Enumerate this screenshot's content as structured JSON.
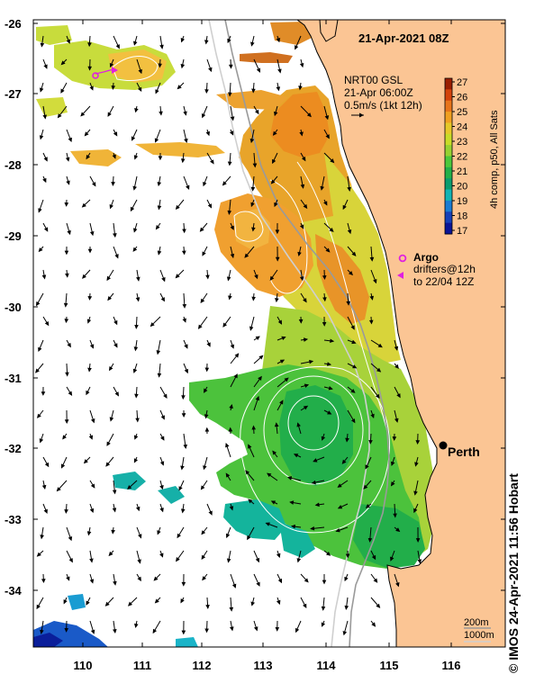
{
  "title": "21-Apr-2021 08Z",
  "product": {
    "line1": "NRT00 GSL",
    "line2": "21-Apr 06:00Z",
    "line3": "0.5m/s (1kt 12h)"
  },
  "colorbar": {
    "label": "4h comp, p50, All Sats",
    "ticks": [
      "27",
      "26",
      "25",
      "24",
      "23",
      "22",
      "21",
      "20",
      "19",
      "18",
      "17"
    ],
    "colors": [
      "#9a1e00",
      "#d4430c",
      "#e8751a",
      "#f0a020",
      "#e6c828",
      "#c8dc28",
      "#96d232",
      "#4cc83c",
      "#22b04a",
      "#0a9c6e",
      "#12b4b4",
      "#1a7cd2",
      "#1640b8",
      "#0a1496"
    ]
  },
  "legend": {
    "argo": "Argo",
    "drifters_line1": "drifters@12h",
    "drifters_line2": "to 22/04 12Z"
  },
  "city": "Perth",
  "bathymetry": {
    "line1": "200m",
    "line2": "1000m"
  },
  "credit": "© IMOS 24-Apr-2021 11:56 Hobart",
  "axes": {
    "lon_labels": [
      "110",
      "111",
      "112",
      "113",
      "114",
      "115",
      "116"
    ],
    "lat_labels": [
      "-26",
      "-27",
      "-28",
      "-29",
      "-30",
      "-31",
      "-32",
      "-33",
      "-34"
    ]
  },
  "colors": {
    "land": "#fbc594",
    "ocean_nodata": "#ffffff",
    "argo_marker": "#e020e0",
    "drifter_marker": "#e020e0",
    "contour": "#ffffff",
    "bathy_200m": "#9a9a9a",
    "bathy_1000m": "#cfcfcf"
  }
}
